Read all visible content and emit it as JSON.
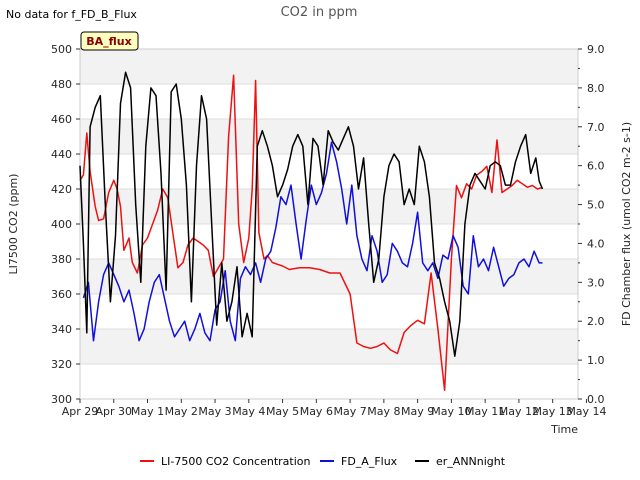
{
  "chart_data": {
    "type": "line",
    "title": "CO2 in ppm",
    "note": "No data for f_FD_B_Flux",
    "badge": "BA_flux",
    "xlabel": "Time",
    "ylabel": "LI7500 CO2 (ppm)",
    "y2label": "FD Chamber flux (umol CO2 m-2 s-1)",
    "ylim": [
      300,
      500
    ],
    "y2lim": [
      0,
      9
    ],
    "xlim": [
      "2024-04-29",
      "2024-05-14"
    ],
    "x_ticks": [
      "Apr 29",
      "Apr 30",
      "May 1",
      "May 2",
      "May 3",
      "May 4",
      "May 5",
      "May 6",
      "May 7",
      "May 8",
      "May 9",
      "May 10",
      "May 11",
      "May 12",
      "May 13",
      "May 14"
    ],
    "y_ticks": [
      "300",
      "320",
      "340",
      "360",
      "380",
      "400",
      "420",
      "440",
      "460",
      "480",
      "500"
    ],
    "y2_ticks": [
      "0.0",
      "1.0",
      "2.0",
      "3.0",
      "4.0",
      "5.0",
      "6.0",
      "7.0",
      "8.0",
      "9.0"
    ],
    "grid": true,
    "legend_position": "bottom",
    "series": [
      {
        "name": "LI-7500 CO2 Concentration",
        "axis": "left",
        "color": "#ee1111",
        "x": [
          0.0,
          0.1,
          0.2,
          0.3,
          0.45,
          0.55,
          0.7,
          0.85,
          1.0,
          1.1,
          1.2,
          1.3,
          1.45,
          1.55,
          1.7,
          1.85,
          2.0,
          2.15,
          2.3,
          2.45,
          2.6,
          2.75,
          2.9,
          3.05,
          3.2,
          3.35,
          3.5,
          3.65,
          3.8,
          3.95,
          4.1,
          4.25,
          4.4,
          4.55,
          4.7,
          4.85,
          5.0,
          5.1,
          5.2,
          5.3,
          5.45,
          5.55,
          5.7,
          5.85,
          6.0,
          6.2,
          6.5,
          6.8,
          7.1,
          7.4,
          7.7,
          8.0,
          8.2,
          8.4,
          8.6,
          8.8,
          9.0,
          9.2,
          9.4,
          9.6,
          9.8,
          10.0,
          10.2,
          10.4,
          10.6,
          10.8,
          11.0,
          11.15,
          11.3,
          11.45,
          11.6,
          11.75,
          11.9,
          12.05,
          12.2,
          12.35,
          12.5,
          12.65,
          12.8,
          12.95,
          13.1,
          13.25,
          13.4,
          13.55,
          13.7
        ],
        "y": [
          425,
          428,
          452,
          430,
          410,
          402,
          403,
          418,
          425,
          420,
          410,
          385,
          392,
          378,
          372,
          388,
          392,
          400,
          408,
          420,
          415,
          395,
          375,
          378,
          388,
          392,
          390,
          388,
          385,
          370,
          375,
          380,
          450,
          485,
          400,
          378,
          392,
          420,
          482,
          395,
          380,
          382,
          378,
          377,
          376,
          374,
          375,
          375,
          374,
          372,
          372,
          360,
          332,
          330,
          329,
          330,
          332,
          328,
          326,
          338,
          342,
          345,
          343,
          372,
          340,
          305,
          380,
          422,
          415,
          423,
          420,
          428,
          430,
          433,
          418,
          448,
          418,
          420,
          422,
          425,
          423,
          421,
          422,
          420,
          421
        ]
      },
      {
        "name": "FD_A_Flux",
        "axis": "right",
        "color": "#1010dd",
        "x": [
          0.1,
          0.25,
          0.4,
          0.55,
          0.7,
          0.85,
          1.0,
          1.15,
          1.3,
          1.45,
          1.6,
          1.75,
          1.9,
          2.05,
          2.2,
          2.35,
          2.5,
          2.65,
          2.8,
          2.95,
          3.1,
          3.25,
          3.4,
          3.55,
          3.7,
          3.85,
          4.0,
          4.15,
          4.3,
          4.45,
          4.6,
          4.75,
          4.9,
          5.05,
          5.2,
          5.35,
          5.5,
          5.65,
          5.8,
          5.95,
          6.1,
          6.25,
          6.4,
          6.55,
          6.7,
          6.85,
          7.0,
          7.15,
          7.3,
          7.45,
          7.6,
          7.75,
          7.9,
          8.05,
          8.2,
          8.35,
          8.5,
          8.65,
          8.8,
          8.95,
          9.1,
          9.25,
          9.4,
          9.55,
          9.7,
          9.85,
          10.0,
          10.15,
          10.3,
          10.45,
          10.6,
          10.75,
          10.9,
          11.05,
          11.2,
          11.35,
          11.5,
          11.65,
          11.8,
          11.95,
          12.1,
          12.25,
          12.4,
          12.55,
          12.7,
          12.85,
          13.0,
          13.15,
          13.3,
          13.45,
          13.6,
          13.7
        ],
        "y": [
          2.6,
          3.0,
          1.5,
          2.5,
          3.2,
          3.5,
          3.2,
          2.9,
          2.5,
          2.8,
          2.2,
          1.5,
          1.8,
          2.5,
          3.0,
          3.2,
          2.6,
          2.0,
          1.6,
          1.8,
          2.0,
          1.5,
          1.8,
          2.2,
          1.7,
          1.5,
          2.3,
          2.5,
          3.3,
          2.0,
          1.5,
          3.1,
          3.4,
          3.2,
          3.5,
          3.0,
          3.6,
          3.8,
          4.4,
          5.2,
          5.0,
          5.5,
          4.5,
          3.6,
          4.6,
          5.5,
          5.0,
          5.3,
          5.8,
          6.6,
          6.1,
          5.4,
          4.5,
          5.5,
          4.2,
          3.6,
          3.3,
          4.2,
          3.8,
          3.0,
          3.2,
          4.0,
          3.8,
          3.5,
          3.4,
          4.0,
          4.8,
          3.5,
          3.3,
          3.5,
          3.1,
          3.7,
          3.6,
          4.2,
          3.9,
          2.9,
          2.7,
          4.2,
          3.4,
          3.6,
          3.3,
          3.9,
          3.4,
          2.9,
          3.1,
          3.2,
          3.5,
          3.6,
          3.4,
          3.8,
          3.5,
          3.5
        ]
      },
      {
        "name": "er_ANNnight",
        "axis": "right",
        "color": "#000000",
        "x": [
          0.0,
          0.1,
          0.2,
          0.3,
          0.45,
          0.6,
          0.75,
          0.9,
          1.05,
          1.2,
          1.35,
          1.5,
          1.65,
          1.8,
          1.95,
          2.1,
          2.25,
          2.4,
          2.55,
          2.7,
          2.85,
          3.0,
          3.15,
          3.3,
          3.45,
          3.6,
          3.75,
          3.9,
          4.05,
          4.2,
          4.35,
          4.5,
          4.65,
          4.8,
          4.95,
          5.1,
          5.25,
          5.4,
          5.55,
          5.7,
          5.85,
          6.0,
          6.15,
          6.3,
          6.45,
          6.6,
          6.75,
          6.9,
          7.05,
          7.2,
          7.35,
          7.5,
          7.65,
          7.8,
          7.95,
          8.1,
          8.25,
          8.4,
          8.55,
          8.7,
          8.85,
          9.0,
          9.15,
          9.3,
          9.45,
          9.6,
          9.75,
          9.9,
          10.05,
          10.2,
          10.35,
          10.5,
          10.65,
          10.8,
          10.95,
          11.1,
          11.25,
          11.4,
          11.55,
          11.7,
          11.85,
          12.0,
          12.15,
          12.3,
          12.45,
          12.6,
          12.75,
          12.9,
          13.05,
          13.2,
          13.35,
          13.5,
          13.6,
          13.7
        ],
        "y": [
          6.0,
          4.0,
          1.7,
          7.0,
          7.5,
          7.8,
          5.0,
          2.5,
          4.2,
          7.6,
          8.4,
          8.0,
          5.0,
          3.0,
          6.5,
          8.0,
          7.8,
          5.8,
          2.8,
          7.9,
          8.1,
          7.2,
          5.5,
          2.5,
          6.0,
          7.8,
          7.2,
          4.5,
          1.9,
          3.5,
          2.0,
          2.5,
          3.4,
          1.6,
          2.2,
          1.6,
          6.5,
          6.9,
          6.5,
          6.0,
          5.2,
          5.5,
          5.9,
          6.5,
          6.8,
          6.5,
          5.0,
          6.7,
          6.5,
          5.5,
          6.9,
          6.6,
          6.4,
          6.7,
          7.0,
          6.5,
          5.4,
          6.2,
          4.5,
          3.0,
          3.6,
          5.2,
          6.0,
          6.3,
          6.1,
          5.0,
          5.4,
          5.0,
          6.5,
          6.1,
          5.2,
          3.5,
          3.1,
          2.5,
          2.0,
          1.1,
          2.0,
          4.5,
          5.5,
          5.8,
          5.6,
          5.4,
          6.0,
          6.1,
          6.0,
          5.5,
          5.5,
          6.1,
          6.5,
          6.8,
          5.8,
          6.2,
          5.6,
          5.4
        ]
      }
    ]
  }
}
